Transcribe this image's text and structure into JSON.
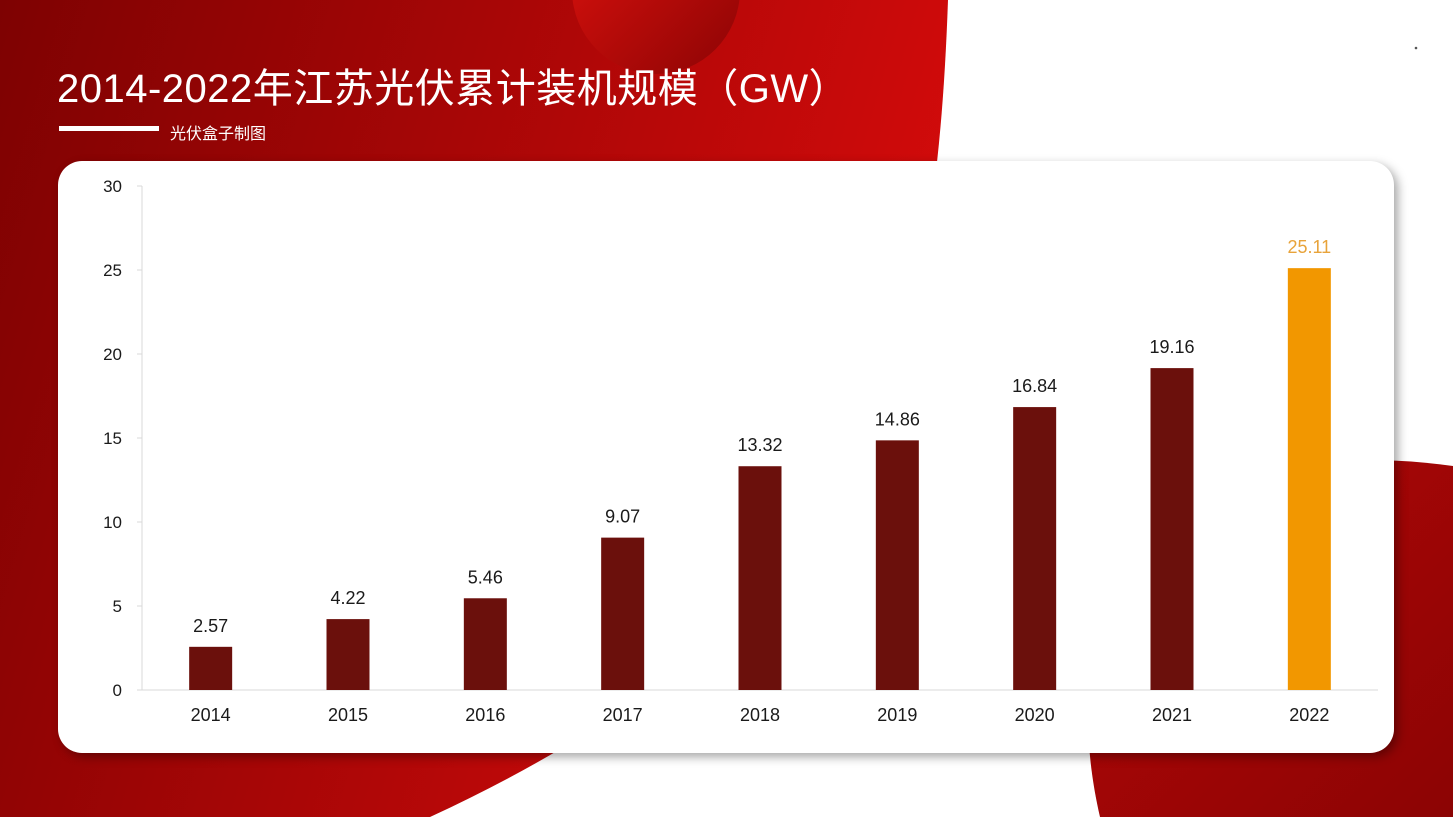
{
  "title": "2014-2022年江苏光伏累计装机规模（GW）",
  "subtitle": "光伏盒子制图",
  "colors": {
    "bar": "#6b100c",
    "highlight": "#f29700",
    "label_highlight": "#e8a33a",
    "bg_dark": "#8a0505",
    "bg_bright": "#cf0a0a"
  },
  "chart_data": {
    "type": "bar",
    "categories": [
      "2014",
      "2015",
      "2016",
      "2017",
      "2018",
      "2019",
      "2020",
      "2021",
      "2022"
    ],
    "values": [
      2.57,
      4.22,
      5.46,
      9.07,
      13.32,
      14.86,
      16.84,
      19.16,
      25.11
    ],
    "value_labels": [
      "2.57",
      "4.22",
      "5.46",
      "9.07",
      "13.32",
      "14.86",
      "16.84",
      "19.16",
      "25.11"
    ],
    "highlight_category": "2022",
    "ylim": [
      0,
      30
    ],
    "yticks": [
      "0",
      "5",
      "10",
      "15",
      "20",
      "25",
      "30"
    ],
    "grid": false,
    "legend": "none"
  }
}
